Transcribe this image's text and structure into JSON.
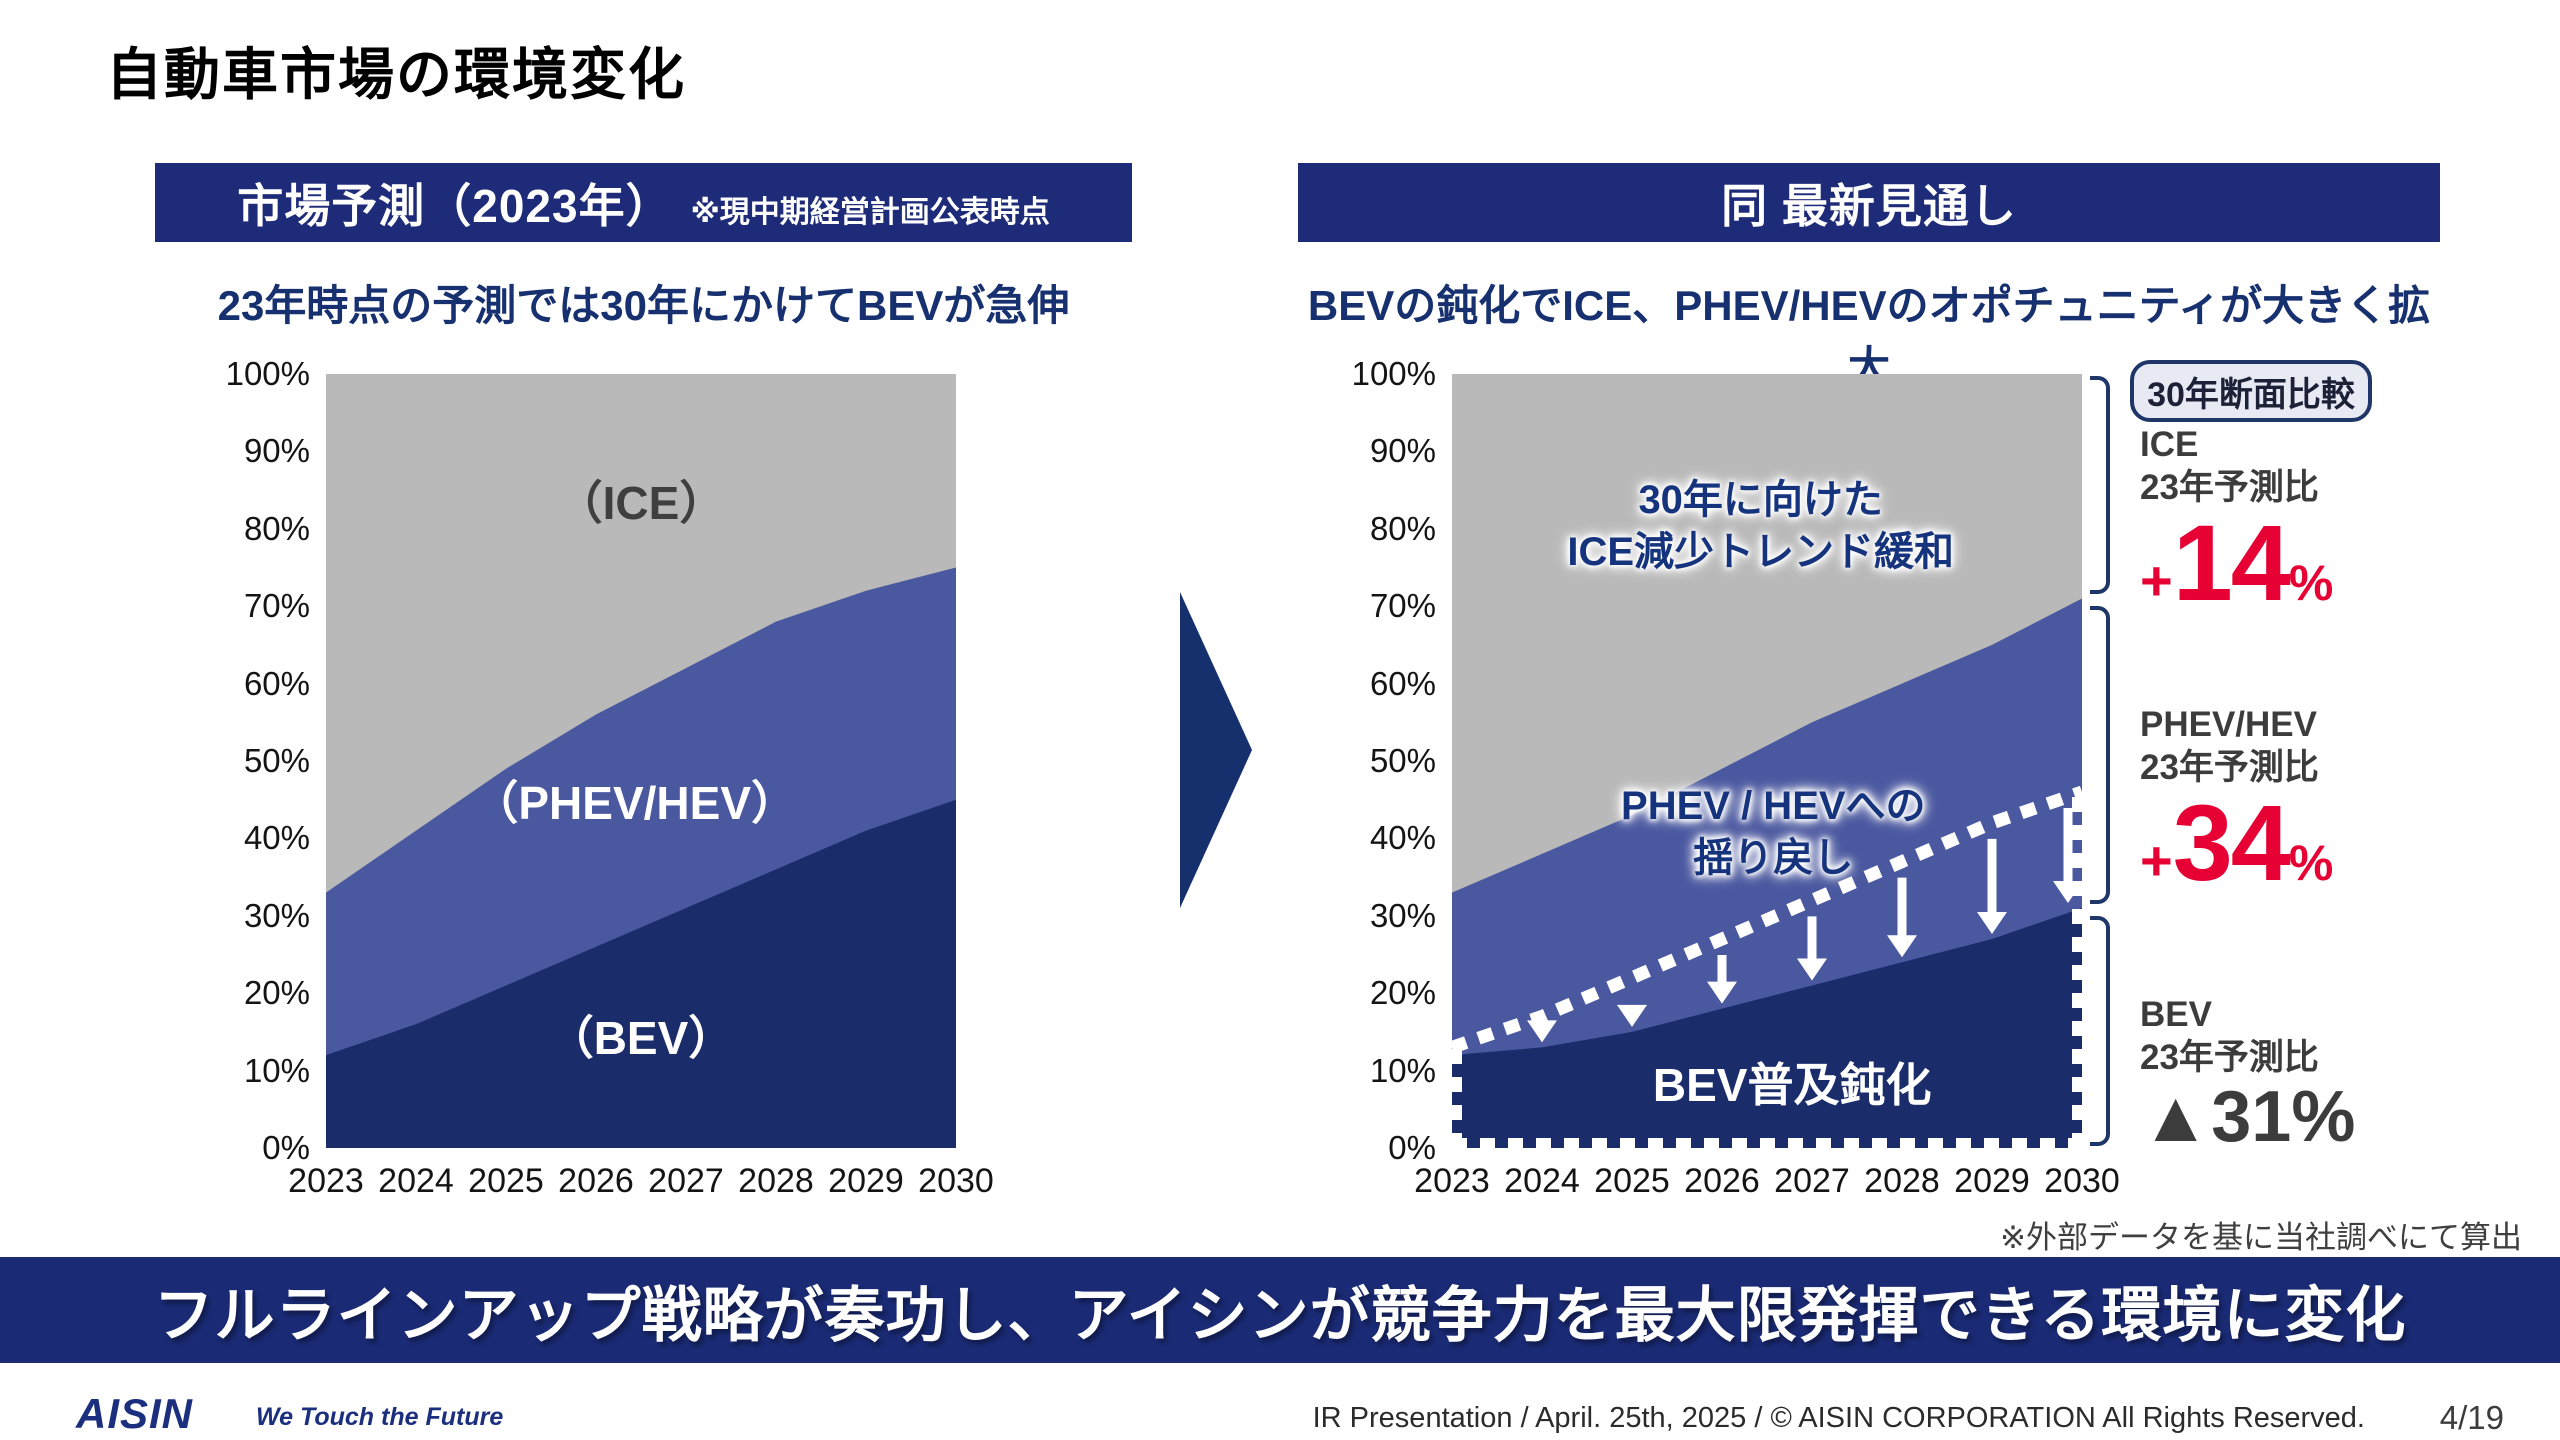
{
  "slide": {
    "title": "自動車市場の環境変化",
    "left_panel": {
      "header": "市場予測（2023年）",
      "header_note": "※現中期経営計画公表時点",
      "subtitle": "23年時点の予測では30年にかけてBEVが急伸",
      "area_labels": {
        "ice": "（ICE）",
        "phev_hev": "（PHEV/HEV）",
        "bev": "（BEV）"
      }
    },
    "right_panel": {
      "header": "同 最新見通し",
      "subtitle": "BEVの鈍化でICE、PHEV/HEVのオポチュニティが大きく拡大",
      "annotations": {
        "ice_line1": "30年に向けた",
        "ice_line2": "ICE減少トレンド緩和",
        "phev_line1": "PHEV / HEVへの",
        "phev_line2": "揺り戻し",
        "bev": "BEV普及鈍化"
      },
      "badge": "30年断面比較",
      "stats": {
        "ice": {
          "name": "ICE",
          "label": "23年予測比",
          "sign": "+",
          "num": "14",
          "pct": "%"
        },
        "phev": {
          "name": "PHEV/HEV",
          "label": "23年予測比",
          "sign": "+",
          "num": "34",
          "pct": "%"
        },
        "bev": {
          "name": "BEV",
          "label": "23年予測比",
          "value": "▲31%"
        }
      }
    },
    "footnote": "※外部データを基に当社調べにて算出",
    "banner": "フルラインアップ戦略が奏功し、アイシンが競争力を最大限発揮できる環境に変化",
    "footer": {
      "logo": "AISIN",
      "tagline": "We Touch the Future",
      "copyright": "IR Presentation / April. 25th, 2025 / © AISIN CORPORATION All Rights Reserved.",
      "page": "4/19"
    },
    "colors": {
      "navy_header": "#1e2b78",
      "banner_navy": "#1a2a74",
      "accent_red": "#e60033"
    }
  },
  "chart_data": [
    {
      "id": "market-forecast-2023",
      "type": "area",
      "subtype": "stacked-100pct",
      "title": "市場予測（2023年）",
      "categories": [
        "2023",
        "2024",
        "2025",
        "2026",
        "2027",
        "2028",
        "2029",
        "2030"
      ],
      "series": [
        {
          "name": "（BEV）",
          "color": "#1b2c6b",
          "values": [
            12,
            16,
            21,
            26,
            31,
            36,
            41,
            45
          ]
        },
        {
          "name": "（PHEV/HEV）",
          "color": "#4a58a0",
          "values": [
            21,
            25,
            28,
            30,
            31,
            32,
            31,
            30
          ]
        },
        {
          "name": "（ICE）",
          "color": "#b9b9b9",
          "values": [
            67,
            59,
            51,
            44,
            38,
            32,
            28,
            25
          ]
        }
      ],
      "ylim": [
        0,
        100
      ],
      "y_ticks": [
        "0%",
        "10%",
        "20%",
        "30%",
        "40%",
        "50%",
        "60%",
        "70%",
        "80%",
        "90%",
        "100%"
      ],
      "grid": false,
      "legend": "labels-inside-areas"
    },
    {
      "id": "latest-outlook",
      "type": "area",
      "subtype": "stacked-100pct",
      "title": "同 最新見通し",
      "categories": [
        "2023",
        "2024",
        "2025",
        "2026",
        "2027",
        "2028",
        "2029",
        "2030"
      ],
      "series": [
        {
          "name": "BEV",
          "color": "#1b2c6b",
          "values": [
            12,
            13,
            15,
            18,
            21,
            24,
            27,
            31
          ]
        },
        {
          "name": "PHEV/HEV",
          "color": "#4a58a0",
          "values": [
            21,
            25,
            28,
            31,
            34,
            36,
            38,
            40
          ]
        },
        {
          "name": "ICE",
          "color": "#b9b9b9",
          "values": [
            67,
            62,
            57,
            51,
            45,
            40,
            35,
            29
          ]
        }
      ],
      "reference_line": {
        "name": "23年予測時点のBEV比率（白点線）",
        "style": "dotted-white",
        "values": [
          13,
          17,
          22,
          27,
          32,
          37,
          42,
          46
        ]
      },
      "arrows": "white-down-arrows-from-reference-line-to-new-BEV-share",
      "dashed_region": "white-dashed-border-around-former-BEV-area",
      "ylim": [
        0,
        100
      ],
      "y_ticks": [
        "0%",
        "10%",
        "20%",
        "30%",
        "40%",
        "50%",
        "60%",
        "70%",
        "80%",
        "90%",
        "100%"
      ],
      "grid": false,
      "legend": "labels-inside-areas"
    }
  ]
}
